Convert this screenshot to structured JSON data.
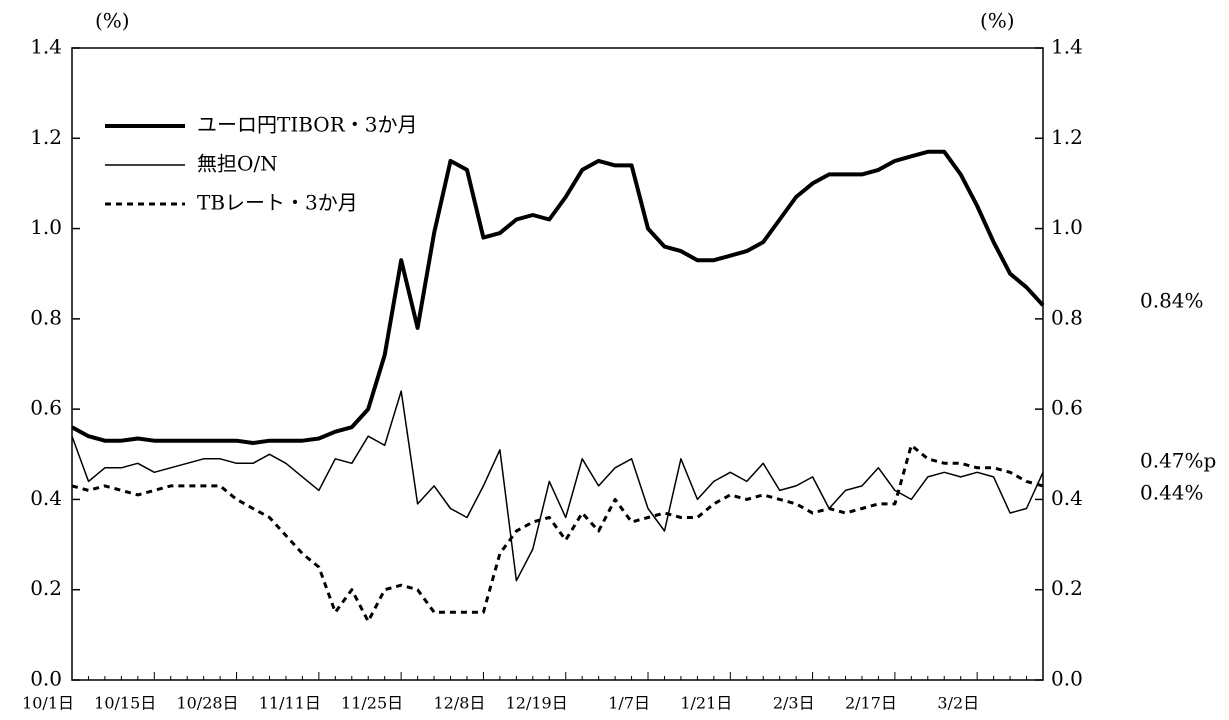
{
  "chart_data": {
    "type": "line",
    "y_label": "(%)",
    "y2_label": "(%)",
    "categories": [
      "10/1日",
      null,
      null,
      null,
      null,
      "10/15日",
      null,
      null,
      null,
      null,
      "10/28日",
      null,
      null,
      null,
      null,
      "11/11日",
      null,
      null,
      null,
      null,
      "11/25日",
      null,
      null,
      null,
      null,
      "12/8日",
      null,
      null,
      null,
      null,
      "12/19日",
      null,
      null,
      null,
      null,
      "1/7日",
      null,
      null,
      null,
      null,
      "1/21日",
      null,
      null,
      null,
      null,
      "2/3日",
      null,
      null,
      null,
      null,
      "2/17日",
      null,
      null,
      null,
      null,
      "3/2日",
      null,
      null,
      null,
      null
    ],
    "series": [
      {
        "name": "ユーロ円TIBOR・3か月",
        "color": "#000000",
        "line_width": 4,
        "line_style": "solid",
        "values": [
          0.56,
          0.54,
          0.53,
          0.53,
          0.535,
          0.53,
          0.53,
          0.53,
          0.53,
          0.53,
          0.53,
          0.525,
          0.53,
          0.53,
          0.53,
          0.535,
          0.55,
          0.56,
          0.6,
          0.72,
          0.93,
          0.78,
          0.99,
          1.15,
          1.13,
          0.98,
          0.99,
          1.02,
          1.03,
          1.02,
          1.07,
          1.13,
          1.15,
          1.14,
          1.14,
          1.0,
          0.96,
          0.95,
          0.93,
          0.93,
          0.94,
          0.95,
          0.97,
          1.02,
          1.07,
          1.1,
          1.12,
          1.12,
          1.12,
          1.13,
          1.15,
          1.16,
          1.17,
          1.17,
          1.12,
          1.05,
          0.97,
          0.9,
          0.87,
          0.83
        ]
      },
      {
        "name": "無担O/N",
        "color": "#000000",
        "line_width": 1.5,
        "line_style": "solid",
        "values": [
          0.54,
          0.44,
          0.47,
          0.47,
          0.48,
          0.46,
          0.47,
          0.48,
          0.49,
          0.49,
          0.48,
          0.48,
          0.5,
          0.48,
          0.45,
          0.42,
          0.49,
          0.48,
          0.54,
          0.52,
          0.64,
          0.39,
          0.43,
          0.38,
          0.36,
          0.43,
          0.51,
          0.22,
          0.29,
          0.44,
          0.36,
          0.49,
          0.43,
          0.47,
          0.49,
          0.38,
          0.33,
          0.49,
          0.4,
          0.44,
          0.46,
          0.44,
          0.48,
          0.42,
          0.43,
          0.45,
          0.38,
          0.42,
          0.43,
          0.47,
          0.42,
          0.4,
          0.45,
          0.46,
          0.45,
          0.46,
          0.45,
          0.37,
          0.38,
          0.46
        ]
      },
      {
        "name": "TBレート・3か月",
        "color": "#000000",
        "line_width": 3,
        "line_style": "dashed",
        "values": [
          0.43,
          0.42,
          0.43,
          0.42,
          0.41,
          0.42,
          0.43,
          0.43,
          0.43,
          0.43,
          0.4,
          0.38,
          0.36,
          0.32,
          0.28,
          0.25,
          0.15,
          0.2,
          0.13,
          0.2,
          0.21,
          0.2,
          0.15,
          0.15,
          0.15,
          0.15,
          0.28,
          0.33,
          0.35,
          0.36,
          0.31,
          0.37,
          0.33,
          0.4,
          0.35,
          0.36,
          0.37,
          0.36,
          0.36,
          0.39,
          0.41,
          0.4,
          0.41,
          0.4,
          0.39,
          0.37,
          0.38,
          0.37,
          0.38,
          0.39,
          0.39,
          0.52,
          0.49,
          0.48,
          0.48,
          0.47,
          0.47,
          0.46,
          0.44,
          0.43
        ]
      }
    ],
    "ylim": [
      0,
      1.4
    ],
    "yticks": [
      {
        "value": 0,
        "label": "0.0"
      },
      0.2,
      0.4,
      0.6,
      0.8,
      {
        "value": 1,
        "label": "1.0"
      },
      1.2,
      1.4
    ],
    "y2lim": [
      0,
      1.4
    ],
    "y2ticks": [
      {
        "value": 0,
        "label": "0.0"
      },
      0.2,
      0.4,
      0.6,
      0.8,
      {
        "value": 1,
        "label": "1.0"
      },
      1.2,
      1.4
    ],
    "annotations": [
      "0.84%",
      "0.47%p",
      "0.44%"
    ],
    "legend": "upper left"
  }
}
